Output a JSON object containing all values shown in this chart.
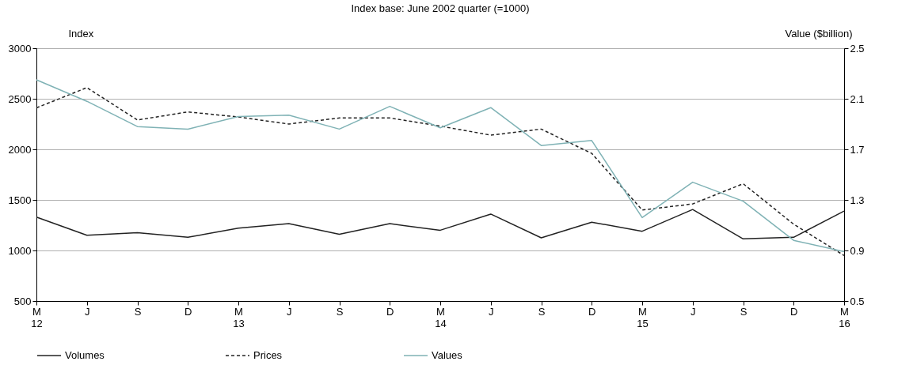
{
  "chart_data": {
    "type": "line",
    "title": "Index base: June 2002 quarter (=1000)",
    "ylabel": "Index",
    "y2label": "Value ($billion)",
    "categories": [
      "M 12",
      "J",
      "S",
      "D",
      "M 13",
      "J",
      "S",
      "D",
      "M 14",
      "J",
      "S",
      "D",
      "M 15",
      "J",
      "S",
      "D",
      "M 16"
    ],
    "series": [
      {
        "name": "Volumes",
        "color": "#222222",
        "line_style": "solid",
        "values": [
          1330,
          1150,
          1175,
          1130,
          1220,
          1265,
          1160,
          1265,
          1200,
          1360,
          1125,
          1280,
          1190,
          1405,
          1115,
          1130,
          1390
        ]
      },
      {
        "name": "Prices",
        "color": "#222222",
        "line_style": "dashed",
        "values": [
          2410,
          2610,
          2290,
          2370,
          2320,
          2250,
          2310,
          2310,
          2230,
          2140,
          2200,
          1960,
          1400,
          1460,
          1660,
          1260,
          950
        ]
      },
      {
        "name": "Values",
        "color": "#7fb2b5",
        "line_style": "solid",
        "axis": "y2",
        "values": [
          2.25,
          2.08,
          1.88,
          1.86,
          1.96,
          1.97,
          1.86,
          2.04,
          1.87,
          2.03,
          1.73,
          1.77,
          1.16,
          1.44,
          1.29,
          0.98,
          0.89
        ]
      }
    ],
    "ylim": [
      500,
      3000
    ],
    "yticks": [
      500,
      1000,
      1500,
      2000,
      2500,
      3000
    ],
    "y2lim": [
      0.5,
      2.5
    ],
    "y2ticks": [
      0.5,
      0.9,
      1.3,
      1.7,
      2.1,
      2.5
    ],
    "grid": "y",
    "legend": "bottom",
    "marker": "none"
  }
}
